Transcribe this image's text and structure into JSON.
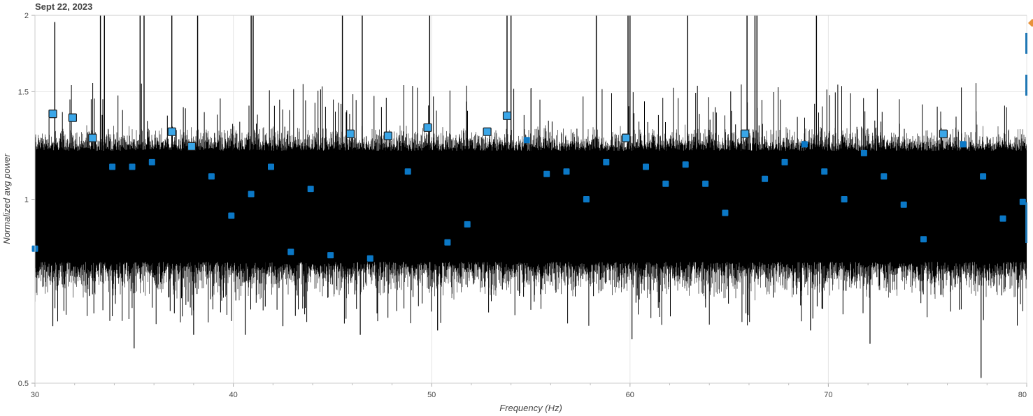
{
  "title": "Sept 22, 2023",
  "colors": {
    "spectrum": "#000000",
    "marker_fill": "#0b78c6",
    "marker_fill_highlight": "#3aa6e8",
    "marker_stroke": "#1a1a1a",
    "grid": "#e5e5e5"
  },
  "toolbar": {
    "icons": [
      "bokeh-logo-icon",
      "pan-tool-icon",
      "wheel-zoom-tool-icon",
      "reset-tool-icon"
    ]
  },
  "chart_data": {
    "type": "line",
    "title": "Sept 22, 2023",
    "xlabel": "Frequency (Hz)",
    "ylabel": "Normalized avg power",
    "xlim": [
      30,
      80
    ],
    "ylim": [
      0.5,
      2
    ],
    "y_scale": "log",
    "grid": true,
    "x_ticks": [
      "30",
      "40",
      "50",
      "60",
      "70",
      "80"
    ],
    "y_ticks": [
      {
        "value": 0.5,
        "label": "0.5"
      },
      {
        "value": 1,
        "label": "1"
      },
      {
        "value": 1.5,
        "label": "1.5"
      },
      {
        "value": 2,
        "label": "2"
      }
    ],
    "series": [
      {
        "kind": "noise-band",
        "description_values": {
          "central_band_low": 0.79,
          "central_band_high": 1.2,
          "typical_envelope_low": 0.7,
          "typical_envelope_high": 1.3
        },
        "spike_lines": [
          {
            "x": 31.0,
            "y": 1.95
          },
          {
            "x": 33.3,
            "y": 2.0
          },
          {
            "x": 33.5,
            "y": 2.0
          },
          {
            "x": 35.3,
            "y": 2.0
          },
          {
            "x": 35.5,
            "y": 2.0
          },
          {
            "x": 36.9,
            "y": 2.0
          },
          {
            "x": 38.2,
            "y": 2.0
          },
          {
            "x": 40.9,
            "y": 2.0
          },
          {
            "x": 41.0,
            "y": 2.0
          },
          {
            "x": 45.5,
            "y": 2.0
          },
          {
            "x": 46.5,
            "y": 2.0
          },
          {
            "x": 49.9,
            "y": 2.0
          },
          {
            "x": 53.8,
            "y": 2.0
          },
          {
            "x": 54.0,
            "y": 2.0
          },
          {
            "x": 58.3,
            "y": 2.0
          },
          {
            "x": 59.9,
            "y": 2.0
          },
          {
            "x": 60.0,
            "y": 2.0
          },
          {
            "x": 62.9,
            "y": 2.0
          },
          {
            "x": 65.9,
            "y": 2.0
          },
          {
            "x": 66.3,
            "y": 2.0
          },
          {
            "x": 66.4,
            "y": 2.0
          },
          {
            "x": 69.4,
            "y": 2.0
          }
        ],
        "dip_lines": [
          {
            "x": 30.9,
            "y": 0.62
          },
          {
            "x": 35.0,
            "y": 0.57
          },
          {
            "x": 38.0,
            "y": 0.6
          },
          {
            "x": 40.6,
            "y": 0.6
          },
          {
            "x": 42.5,
            "y": 0.62
          },
          {
            "x": 46.4,
            "y": 0.6
          },
          {
            "x": 50.3,
            "y": 0.61
          },
          {
            "x": 60.1,
            "y": 0.59
          },
          {
            "x": 69.1,
            "y": 0.61
          },
          {
            "x": 72.1,
            "y": 0.58
          },
          {
            "x": 77.7,
            "y": 0.51
          }
        ]
      },
      {
        "kind": "markers",
        "points": [
          {
            "x": 30.0,
            "y": 0.83
          },
          {
            "x": 30.9,
            "y": 1.38
          },
          {
            "x": 31.9,
            "y": 1.36
          },
          {
            "x": 32.9,
            "y": 1.26
          },
          {
            "x": 33.9,
            "y": 1.13
          },
          {
            "x": 34.9,
            "y": 1.13
          },
          {
            "x": 35.9,
            "y": 1.15
          },
          {
            "x": 36.9,
            "y": 1.29
          },
          {
            "x": 37.9,
            "y": 1.22
          },
          {
            "x": 38.9,
            "y": 1.09
          },
          {
            "x": 39.9,
            "y": 0.94
          },
          {
            "x": 40.9,
            "y": 1.02
          },
          {
            "x": 41.9,
            "y": 1.13
          },
          {
            "x": 42.9,
            "y": 0.82
          },
          {
            "x": 43.9,
            "y": 1.04
          },
          {
            "x": 44.9,
            "y": 0.81
          },
          {
            "x": 45.9,
            "y": 1.28
          },
          {
            "x": 46.9,
            "y": 0.8
          },
          {
            "x": 47.8,
            "y": 1.27
          },
          {
            "x": 48.8,
            "y": 1.11
          },
          {
            "x": 49.8,
            "y": 1.31
          },
          {
            "x": 50.8,
            "y": 0.85
          },
          {
            "x": 51.8,
            "y": 0.91
          },
          {
            "x": 52.8,
            "y": 1.29
          },
          {
            "x": 53.8,
            "y": 1.37
          },
          {
            "x": 54.8,
            "y": 1.25
          },
          {
            "x": 55.8,
            "y": 1.1
          },
          {
            "x": 56.8,
            "y": 1.11
          },
          {
            "x": 57.8,
            "y": 1.0
          },
          {
            "x": 58.8,
            "y": 1.15
          },
          {
            "x": 59.8,
            "y": 1.26
          },
          {
            "x": 60.8,
            "y": 1.13
          },
          {
            "x": 61.8,
            "y": 1.06
          },
          {
            "x": 62.8,
            "y": 1.14
          },
          {
            "x": 63.8,
            "y": 1.06
          },
          {
            "x": 64.8,
            "y": 0.95
          },
          {
            "x": 65.8,
            "y": 1.28
          },
          {
            "x": 66.8,
            "y": 1.08
          },
          {
            "x": 67.8,
            "y": 1.15
          },
          {
            "x": 68.8,
            "y": 1.23
          },
          {
            "x": 69.8,
            "y": 1.11
          },
          {
            "x": 70.8,
            "y": 1.0
          },
          {
            "x": 71.8,
            "y": 1.19
          },
          {
            "x": 72.8,
            "y": 1.09
          },
          {
            "x": 73.8,
            "y": 0.98
          },
          {
            "x": 74.8,
            "y": 0.86
          },
          {
            "x": 75.8,
            "y": 1.28
          },
          {
            "x": 76.8,
            "y": 1.23
          },
          {
            "x": 77.8,
            "y": 1.09
          },
          {
            "x": 78.8,
            "y": 0.93
          },
          {
            "x": 79.8,
            "y": 0.99
          }
        ],
        "highlighted_x": [
          30.9,
          31.9,
          32.9,
          36.9,
          37.9,
          45.9,
          47.8,
          49.8,
          52.8,
          53.8,
          59.8,
          65.8,
          75.8
        ]
      }
    ]
  }
}
